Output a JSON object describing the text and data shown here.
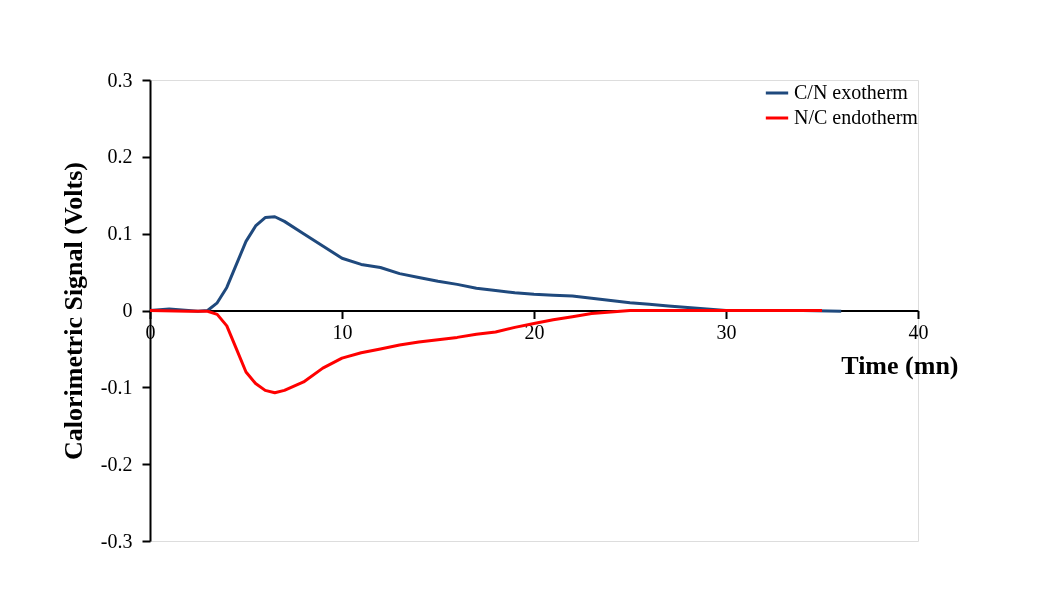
{
  "chart_data": {
    "type": "line",
    "xlabel": "Time (mn)",
    "ylabel": "Calorimetric Signal (Volts)",
    "xlim": [
      0,
      40
    ],
    "xticks": [
      0,
      10,
      20,
      30,
      40
    ],
    "ylim": [
      -0.3,
      0.3
    ],
    "yticks": [
      -0.3,
      -0.2,
      -0.1,
      0,
      0.1,
      0.2,
      0.3
    ],
    "grid": false,
    "legend": "top right",
    "line_style": "solid",
    "marker": "none",
    "series": [
      {
        "name": "C/N exotherm",
        "color": "#1f497d",
        "x": [
          0,
          1,
          2,
          2.5,
          3,
          3.5,
          4,
          4.5,
          5,
          5.5,
          6,
          6.5,
          7,
          8,
          9,
          10,
          11,
          12,
          13,
          14,
          15,
          16,
          17,
          18,
          19,
          20,
          21,
          22,
          23,
          24,
          25,
          26,
          27,
          28,
          29,
          30,
          32,
          34,
          36
        ],
        "values": [
          0,
          0.002,
          0,
          -0.001,
          0,
          0.01,
          0.03,
          0.06,
          0.09,
          0.11,
          0.121,
          0.122,
          0.116,
          0.1,
          0.084,
          0.068,
          0.06,
          0.056,
          0.048,
          0.043,
          0.038,
          0.034,
          0.029,
          0.026,
          0.023,
          0.021,
          0.02,
          0.019,
          0.016,
          0.013,
          0.01,
          0.008,
          0.006,
          0.004,
          0.002,
          0,
          0,
          0,
          -0.001
        ]
      },
      {
        "name": "N/C endotherm",
        "color": "#ff0000",
        "x": [
          0,
          2,
          3,
          3.5,
          4,
          4.5,
          5,
          5.5,
          6,
          6.5,
          7,
          8,
          9,
          10,
          11,
          12,
          13,
          14,
          15,
          16,
          17,
          18,
          19,
          20,
          21,
          22,
          23,
          24,
          25,
          28,
          30,
          33,
          35
        ],
        "values": [
          0,
          -0.001,
          -0.001,
          -0.005,
          -0.02,
          -0.05,
          -0.08,
          -0.095,
          -0.104,
          -0.107,
          -0.104,
          -0.093,
          -0.075,
          -0.062,
          -0.055,
          -0.05,
          -0.045,
          -0.041,
          -0.038,
          -0.035,
          -0.031,
          -0.028,
          -0.022,
          -0.017,
          -0.012,
          -0.008,
          -0.004,
          -0.002,
          0,
          0,
          0,
          0,
          0
        ]
      }
    ]
  }
}
